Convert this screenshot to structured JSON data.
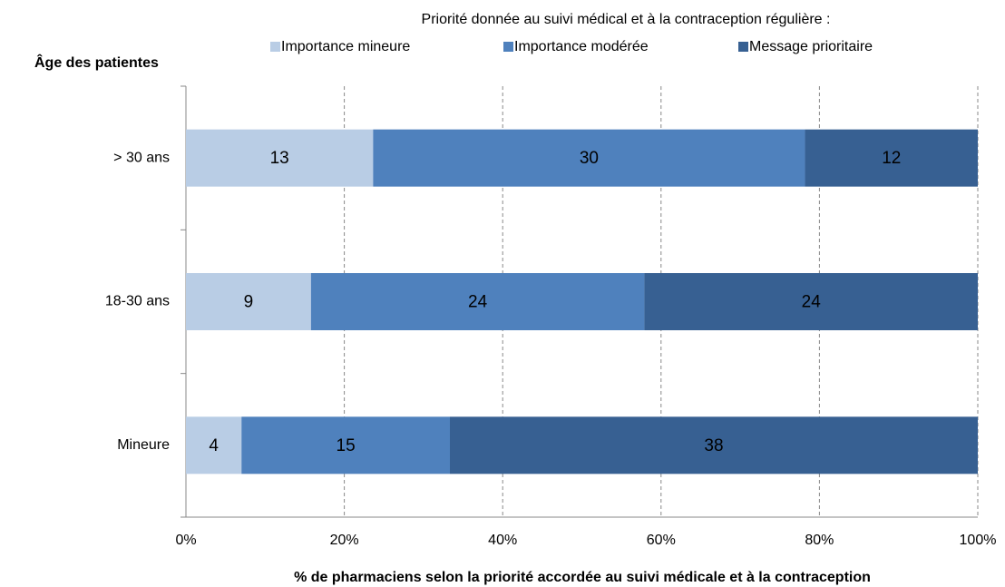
{
  "chart_data": {
    "type": "bar",
    "orientation": "horizontal",
    "stacking": "percent",
    "legend_title": "Priorité donnée au suivi médical et à la contraception régulière :",
    "y_label": "Âge des patientes",
    "x_label": "% de pharmaciens selon la priorité accordée au suivi médicale et à la contraception",
    "categories": [
      "> 30 ans",
      "18-30 ans",
      "Mineure"
    ],
    "series": [
      {
        "name": "Importance mineure",
        "color": "#b9cde5",
        "values": [
          13,
          9,
          4
        ]
      },
      {
        "name": "Importance modérée",
        "color": "#4f81bd",
        "values": [
          30,
          24,
          15
        ]
      },
      {
        "name": "Message prioritaire",
        "color": "#376092",
        "values": [
          12,
          24,
          38
        ]
      }
    ],
    "xlim": [
      0,
      100
    ],
    "xticks": [
      {
        "value": 0,
        "label": "0%"
      },
      {
        "value": 20,
        "label": "20%"
      },
      {
        "value": 40,
        "label": "40%"
      },
      {
        "value": 60,
        "label": "60%"
      },
      {
        "value": 80,
        "label": "80%"
      },
      {
        "value": 100,
        "label": "100%"
      }
    ],
    "grid": true,
    "legend": "top"
  }
}
